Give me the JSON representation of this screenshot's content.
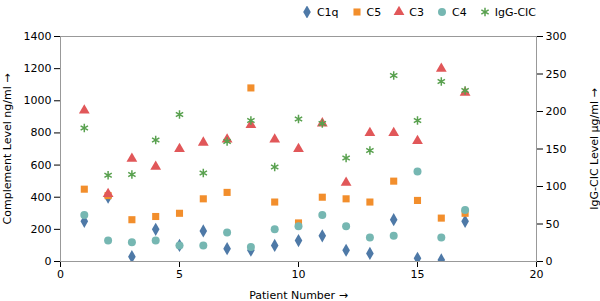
{
  "chart_data": {
    "type": "scatter",
    "xlabel": "Patient Number",
    "ylabel": "Complement Level ng/ml",
    "y2label": "IgG-CIC Level μg/ml",
    "x": [
      1,
      2,
      3,
      4,
      5,
      6,
      7,
      8,
      9,
      10,
      11,
      12,
      13,
      14,
      15,
      16,
      17
    ],
    "xlim": [
      0,
      20
    ],
    "xticks": [
      0,
      5,
      10,
      15,
      20
    ],
    "ylim": [
      0,
      1400
    ],
    "yticks": [
      0,
      200,
      400,
      600,
      800,
      1000,
      1200,
      1400
    ],
    "y2lim": [
      0,
      300
    ],
    "y2ticks": [
      0,
      50,
      100,
      150,
      200,
      250,
      300
    ],
    "grid": false,
    "legend": "upper right",
    "series": [
      {
        "name": "C1q",
        "marker": "diamond",
        "values": [
          250,
          400,
          30,
          200,
          100,
          190,
          80,
          70,
          100,
          130,
          160,
          70,
          50,
          260,
          20,
          10,
          250
        ]
      },
      {
        "name": "C5",
        "marker": "square",
        "values": [
          450,
          410,
          260,
          280,
          300,
          390,
          430,
          1080,
          370,
          240,
          400,
          390,
          370,
          500,
          380,
          270,
          300
        ]
      },
      {
        "name": "C3",
        "marker": "triangle",
        "values": [
          940,
          420,
          640,
          590,
          700,
          740,
          760,
          850,
          760,
          700,
          860,
          490,
          800,
          800,
          750,
          1200,
          1050
        ]
      },
      {
        "name": "C4",
        "marker": "circle",
        "values": [
          290,
          130,
          120,
          130,
          100,
          100,
          180,
          90,
          200,
          220,
          290,
          220,
          150,
          160,
          560,
          150,
          320
        ]
      },
      {
        "name": "IgG-CIC",
        "marker": "asterisk",
        "axis": "y2",
        "values": [
          178,
          115,
          116,
          162,
          196,
          118,
          160,
          188,
          126,
          190,
          184,
          138,
          148,
          248,
          188,
          240,
          228
        ]
      }
    ]
  }
}
